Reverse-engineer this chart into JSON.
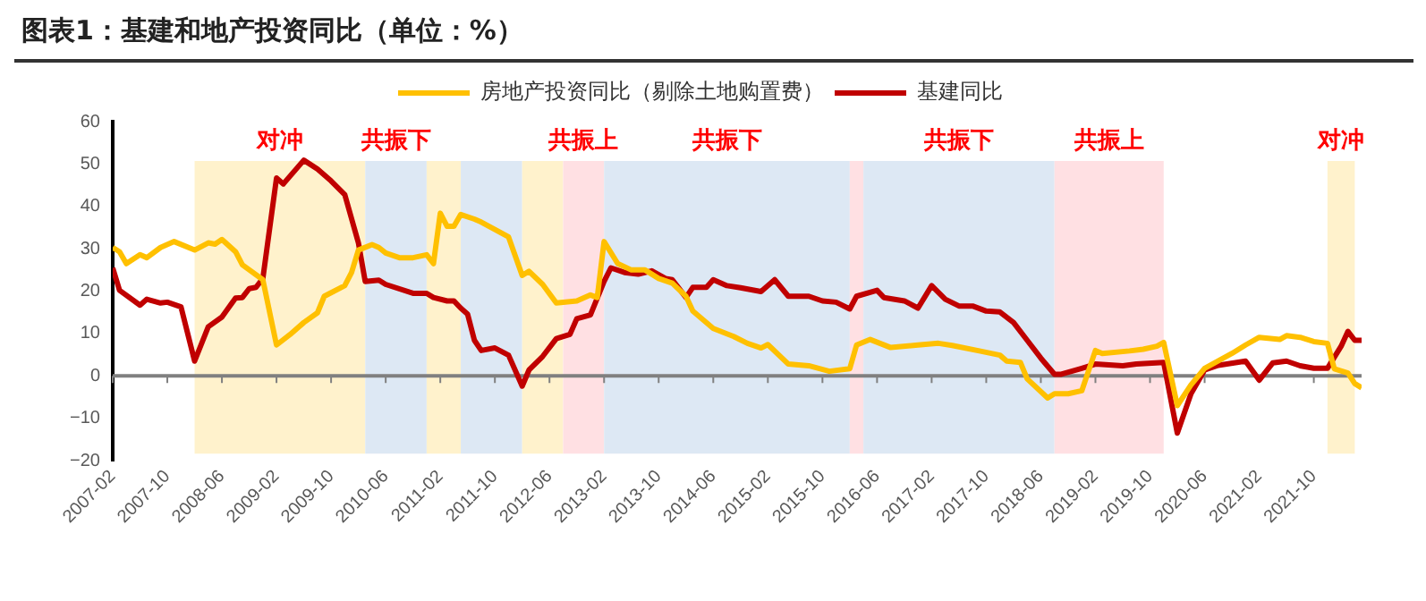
{
  "chart_data": {
    "type": "line",
    "title": "图表1：基建和地产投资同比（单位：%）",
    "series": [
      {
        "name": "房地产投资同比（剔除土地购置费）",
        "color": "#ffc000",
        "x": [
          "2007-02",
          "2007-03",
          "2007-04",
          "2007-06",
          "2007-07",
          "2007-09",
          "2007-11",
          "2008-02",
          "2008-04",
          "2008-05",
          "2008-06",
          "2008-08",
          "2008-09",
          "2008-12",
          "2009-02",
          "2009-04",
          "2009-06",
          "2009-08",
          "2009-09",
          "2009-12",
          "2010-01",
          "2010-02",
          "2010-04",
          "2010-05",
          "2010-06",
          "2010-08",
          "2010-10",
          "2010-12",
          "2011-01",
          "2011-02",
          "2011-03",
          "2011-04",
          "2011-05",
          "2011-07",
          "2011-08",
          "2011-12",
          "2012-02",
          "2012-03",
          "2012-05",
          "2012-07",
          "2012-10",
          "2012-12",
          "2013-01",
          "2013-02",
          "2013-04",
          "2013-06",
          "2013-08",
          "2013-10",
          "2013-12",
          "2014-02",
          "2014-03",
          "2014-06",
          "2014-09",
          "2014-11",
          "2015-01",
          "2015-02",
          "2015-05",
          "2015-08",
          "2015-11",
          "2016-02",
          "2016-03",
          "2016-05",
          "2016-08",
          "2016-12",
          "2017-03",
          "2017-05",
          "2017-09",
          "2017-12",
          "2018-01",
          "2018-03",
          "2018-04",
          "2018-07",
          "2018-08",
          "2018-10",
          "2018-12",
          "2019-02",
          "2019-03",
          "2019-07",
          "2019-09",
          "2019-11",
          "2019-12",
          "2020-02",
          "2020-04",
          "2020-06",
          "2020-10",
          "2020-12",
          "2021-02",
          "2021-05",
          "2021-06",
          "2021-08",
          "2021-10",
          "2021-12",
          "2022-01",
          "2022-03",
          "2022-04",
          "2022-05"
        ],
        "values": [
          30.3,
          29.3,
          26.5,
          28.6,
          27.9,
          30.3,
          31.7,
          29.7,
          31.4,
          31.1,
          32.2,
          29.3,
          26.2,
          22.7,
          7.3,
          9.8,
          12.6,
          14.9,
          18.8,
          21.3,
          24.4,
          29.7,
          31,
          30.3,
          29,
          27.9,
          27.9,
          28.6,
          26.5,
          38.4,
          35.3,
          35.3,
          38.1,
          37,
          36.3,
          32.8,
          23.7,
          24.7,
          21.6,
          17.2,
          17.7,
          19.1,
          18.5,
          31.7,
          26.5,
          25,
          25,
          23,
          21.9,
          18.8,
          15.3,
          11.2,
          9.3,
          7.7,
          6.6,
          7.4,
          2.8,
          2.4,
          1.1,
          1.7,
          7.3,
          8.6,
          6.7,
          7.3,
          7.7,
          7.2,
          5.9,
          4.9,
          3.5,
          3.2,
          -0.7,
          -5.2,
          -4.2,
          -4.2,
          -3.5,
          6,
          5.3,
          5.9,
          6.3,
          7,
          7.9,
          -7,
          -2.1,
          1.8,
          5.3,
          7.3,
          9.1,
          8.6,
          9.5,
          9.1,
          8.1,
          7.7,
          1.7,
          0.7,
          -1.8,
          -2.8
        ]
      },
      {
        "name": "基建同比",
        "color": "#c00000",
        "x": [
          "2007-02",
          "2007-03",
          "2007-06",
          "2007-07",
          "2007-09",
          "2007-10",
          "2007-12",
          "2008-02",
          "2008-04",
          "2008-06",
          "2008-08",
          "2008-09",
          "2008-10",
          "2008-11",
          "2008-12",
          "2009-02",
          "2009-03",
          "2009-06",
          "2009-08",
          "2009-10",
          "2009-12",
          "2010-02",
          "2010-03",
          "2010-05",
          "2010-06",
          "2010-10",
          "2010-12",
          "2011-01",
          "2011-03",
          "2011-04",
          "2011-05",
          "2011-06",
          "2011-07",
          "2011-08",
          "2011-10",
          "2011-12",
          "2012-02",
          "2012-03",
          "2012-05",
          "2012-07",
          "2012-09",
          "2012-10",
          "2012-12",
          "2013-02",
          "2013-03",
          "2013-05",
          "2013-07",
          "2013-09",
          "2013-11",
          "2013-12",
          "2014-02",
          "2014-03",
          "2014-05",
          "2014-06",
          "2014-08",
          "2014-10",
          "2015-01",
          "2015-03",
          "2015-05",
          "2015-08",
          "2015-10",
          "2015-12",
          "2016-02",
          "2016-03",
          "2016-06",
          "2016-07",
          "2016-10",
          "2016-12",
          "2017-02",
          "2017-04",
          "2017-06",
          "2017-08",
          "2017-10",
          "2017-12",
          "2018-02",
          "2018-04",
          "2018-06",
          "2018-08",
          "2018-09",
          "2018-12",
          "2019-02",
          "2019-06",
          "2019-08",
          "2019-12",
          "2020-02",
          "2020-04",
          "2020-06",
          "2020-08",
          "2020-12",
          "2021-02",
          "2021-04",
          "2021-06",
          "2021-08",
          "2021-10",
          "2021-12",
          "2022-02",
          "2022-03",
          "2022-04",
          "2022-05"
        ],
        "values": [
          25.5,
          20.2,
          16.7,
          18.1,
          17.2,
          17.4,
          16.3,
          3.5,
          11.6,
          13.9,
          18.4,
          18.5,
          20.6,
          20.9,
          23,
          46.7,
          45.3,
          50.9,
          48.8,
          46,
          42.8,
          31.4,
          22.3,
          22.6,
          21.6,
          19.5,
          19.5,
          18.5,
          17.7,
          17.7,
          16,
          14.6,
          8.4,
          6,
          6.6,
          4.9,
          -2.4,
          1.4,
          4.6,
          8.8,
          9.8,
          13.5,
          14.4,
          22.3,
          25.5,
          24.4,
          24,
          24.8,
          23,
          22.7,
          18.5,
          20.9,
          20.9,
          22.7,
          21.3,
          20.8,
          19.9,
          22.7,
          18.8,
          18.8,
          17.7,
          17.4,
          15.8,
          18.8,
          20.2,
          18.5,
          17.7,
          16,
          21.3,
          18.1,
          16.5,
          16.5,
          15.3,
          15.1,
          12.6,
          8.4,
          4.2,
          0.4,
          0.4,
          1.8,
          2.8,
          2.4,
          2.8,
          3.2,
          -13.5,
          -4.2,
          1.4,
          2.5,
          3.5,
          -1,
          3.1,
          3.5,
          2.4,
          1.8,
          1.8,
          7,
          10.5,
          8.4,
          8.4
        ]
      }
    ],
    "xlim": [
      "2007-02",
      "2022-05"
    ],
    "xticks": [
      "2007-02",
      "2007-10",
      "2008-06",
      "2009-02",
      "2009-10",
      "2010-06",
      "2011-02",
      "2011-10",
      "2012-06",
      "2013-02",
      "2013-10",
      "2014-06",
      "2015-02",
      "2015-10",
      "2016-06",
      "2017-02",
      "2017-10",
      "2018-06",
      "2019-02",
      "2019-10",
      "2020-06",
      "2021-02",
      "2021-10"
    ],
    "ylim": [
      -20,
      60
    ],
    "yticks": [
      -20,
      -10,
      0,
      10,
      20,
      30,
      40,
      50,
      60
    ],
    "ref_lines": [
      {
        "axis": "y",
        "value": 0,
        "color": "#808080"
      }
    ],
    "bands": [
      {
        "axis": "x",
        "from": "2008-02",
        "to": "2010-03",
        "label": "对冲",
        "color": "#fff2cc"
      },
      {
        "axis": "x",
        "from": "2010-03",
        "to": "2010-12",
        "label": "共振下",
        "color": "#dde8f4"
      },
      {
        "axis": "x",
        "from": "2010-12",
        "to": "2011-05",
        "color": "#fff2cc"
      },
      {
        "axis": "x",
        "from": "2011-05",
        "to": "2012-02",
        "color": "#dde8f4"
      },
      {
        "axis": "x",
        "from": "2012-02",
        "to": "2012-08",
        "color": "#fff2cc"
      },
      {
        "axis": "x",
        "from": "2012-08",
        "to": "2013-02",
        "label": "共振上",
        "color": "#ffe0e3"
      },
      {
        "axis": "x",
        "from": "2013-02",
        "to": "2016-02",
        "label": "共振下",
        "color": "#dde8f4"
      },
      {
        "axis": "x",
        "from": "2016-02",
        "to": "2016-04",
        "color": "#ffe0e3"
      },
      {
        "axis": "x",
        "from": "2016-04",
        "to": "2018-08",
        "label": "共振下",
        "color": "#dde8f4"
      },
      {
        "axis": "x",
        "from": "2018-08",
        "to": "2019-12",
        "label": "共振上",
        "color": "#ffe0e3"
      },
      {
        "axis": "x",
        "from": "2021-12",
        "to": "2022-04",
        "label": "对冲",
        "color": "#fff2cc"
      }
    ],
    "legend": "top",
    "grid": false,
    "marker": "none",
    "line_style": "solid"
  }
}
